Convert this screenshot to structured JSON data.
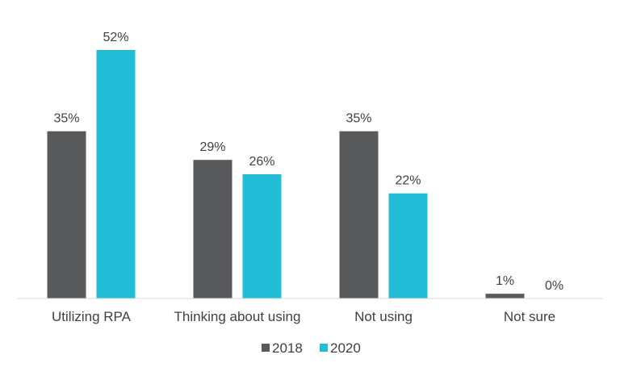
{
  "chart_data": {
    "type": "bar",
    "categories": [
      "Utilizing RPA",
      "Thinking about using",
      "Not using",
      "Not sure"
    ],
    "series": [
      {
        "name": "2018",
        "color": "#58595b",
        "values": [
          35,
          29,
          35,
          1
        ],
        "labels": [
          "35%",
          "29%",
          "35%",
          "1%"
        ]
      },
      {
        "name": "2020",
        "color": "#22bcd6",
        "values": [
          52,
          26,
          22,
          0
        ],
        "labels": [
          "52%",
          "26%",
          "22%",
          "0%"
        ]
      }
    ],
    "ylim": [
      0,
      52
    ],
    "grid": false,
    "legend_position": "bottom"
  }
}
